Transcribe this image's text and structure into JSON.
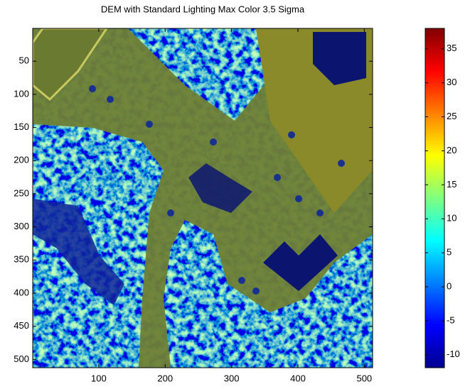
{
  "chart_data": {
    "type": "image",
    "title": "DEM with Standard Lighting Max Color 3.5 Sigma",
    "xlim": [
      0.5,
      512.5
    ],
    "ylim": [
      0.5,
      512.5
    ],
    "y_reversed": true,
    "xticks": [
      100,
      200,
      300,
      400,
      500
    ],
    "yticks": [
      50,
      100,
      150,
      200,
      250,
      300,
      350,
      400,
      450,
      500
    ],
    "colormap": "jet",
    "colorbar": {
      "clim": [
        -11.9,
        38.0
      ],
      "ticks": [
        -10,
        -5,
        0,
        5,
        10,
        15,
        20,
        25,
        30,
        35
      ]
    }
  }
}
